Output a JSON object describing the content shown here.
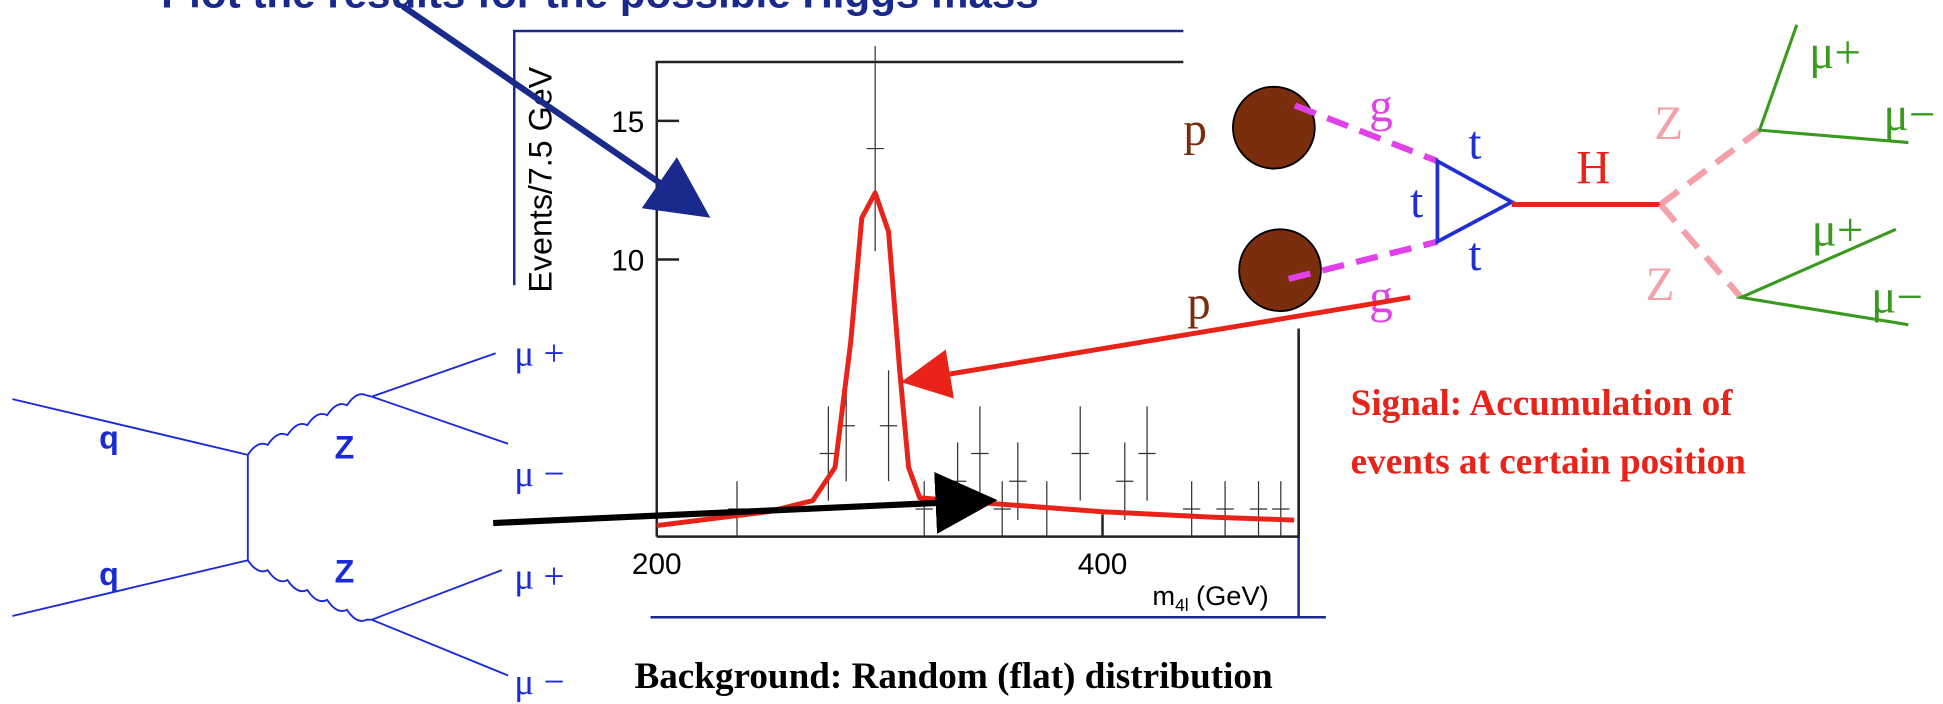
{
  "title": "Plot the results for the possible Higgs mass",
  "plot": {
    "ylabel": "Events/7.5 GeV",
    "xlabel": {
      "main": "m",
      "sub": "4l",
      "unit": "(GeV)"
    },
    "xlim": [
      200,
      488
    ],
    "ylim": [
      0,
      16.9
    ],
    "xticks": [
      200,
      400
    ],
    "yticks": [
      10,
      15
    ],
    "signal_curve": {
      "color": "#e8231a",
      "x": [
        200,
        250,
        270,
        280,
        287,
        292,
        298,
        304,
        309,
        313,
        318,
        350,
        400,
        450,
        486
      ],
      "y": [
        0.4,
        0.9,
        1.3,
        2.5,
        7,
        11.5,
        12.4,
        11,
        6,
        2.5,
        1.4,
        1.2,
        0.9,
        0.7,
        0.6
      ]
    },
    "points": {
      "x": [
        236,
        277,
        285,
        298,
        304,
        320,
        335,
        345,
        355,
        362,
        375,
        390,
        410,
        420,
        440,
        455,
        470,
        480
      ],
      "y": [
        1,
        3,
        4,
        14,
        4,
        1,
        2,
        3,
        1,
        2,
        1,
        3,
        2,
        3,
        1,
        1,
        1,
        1
      ],
      "err": [
        1,
        1.7,
        2,
        3.7,
        2,
        1,
        1.4,
        1.7,
        1,
        1.4,
        1,
        1.7,
        1.4,
        1.7,
        1,
        1,
        1,
        1
      ]
    }
  },
  "background_diagram": {
    "quarks": [
      "q",
      "q"
    ],
    "bosons": [
      "Z",
      "Z"
    ],
    "muons": [
      "μ +",
      "μ −",
      "μ +",
      "μ −"
    ]
  },
  "signal_diagram": {
    "protons": [
      "p",
      "p"
    ],
    "gluons": [
      "g",
      "g"
    ],
    "tops": [
      "t",
      "t",
      "t"
    ],
    "higgs": "H",
    "bosons": [
      "Z",
      "Z"
    ],
    "muons": [
      "μ+",
      "μ−",
      "μ+",
      "μ−"
    ]
  },
  "signal_caption": [
    "Signal: Accumulation of",
    "events at certain position"
  ],
  "background_caption": "Background: Random (flat) distribution"
}
